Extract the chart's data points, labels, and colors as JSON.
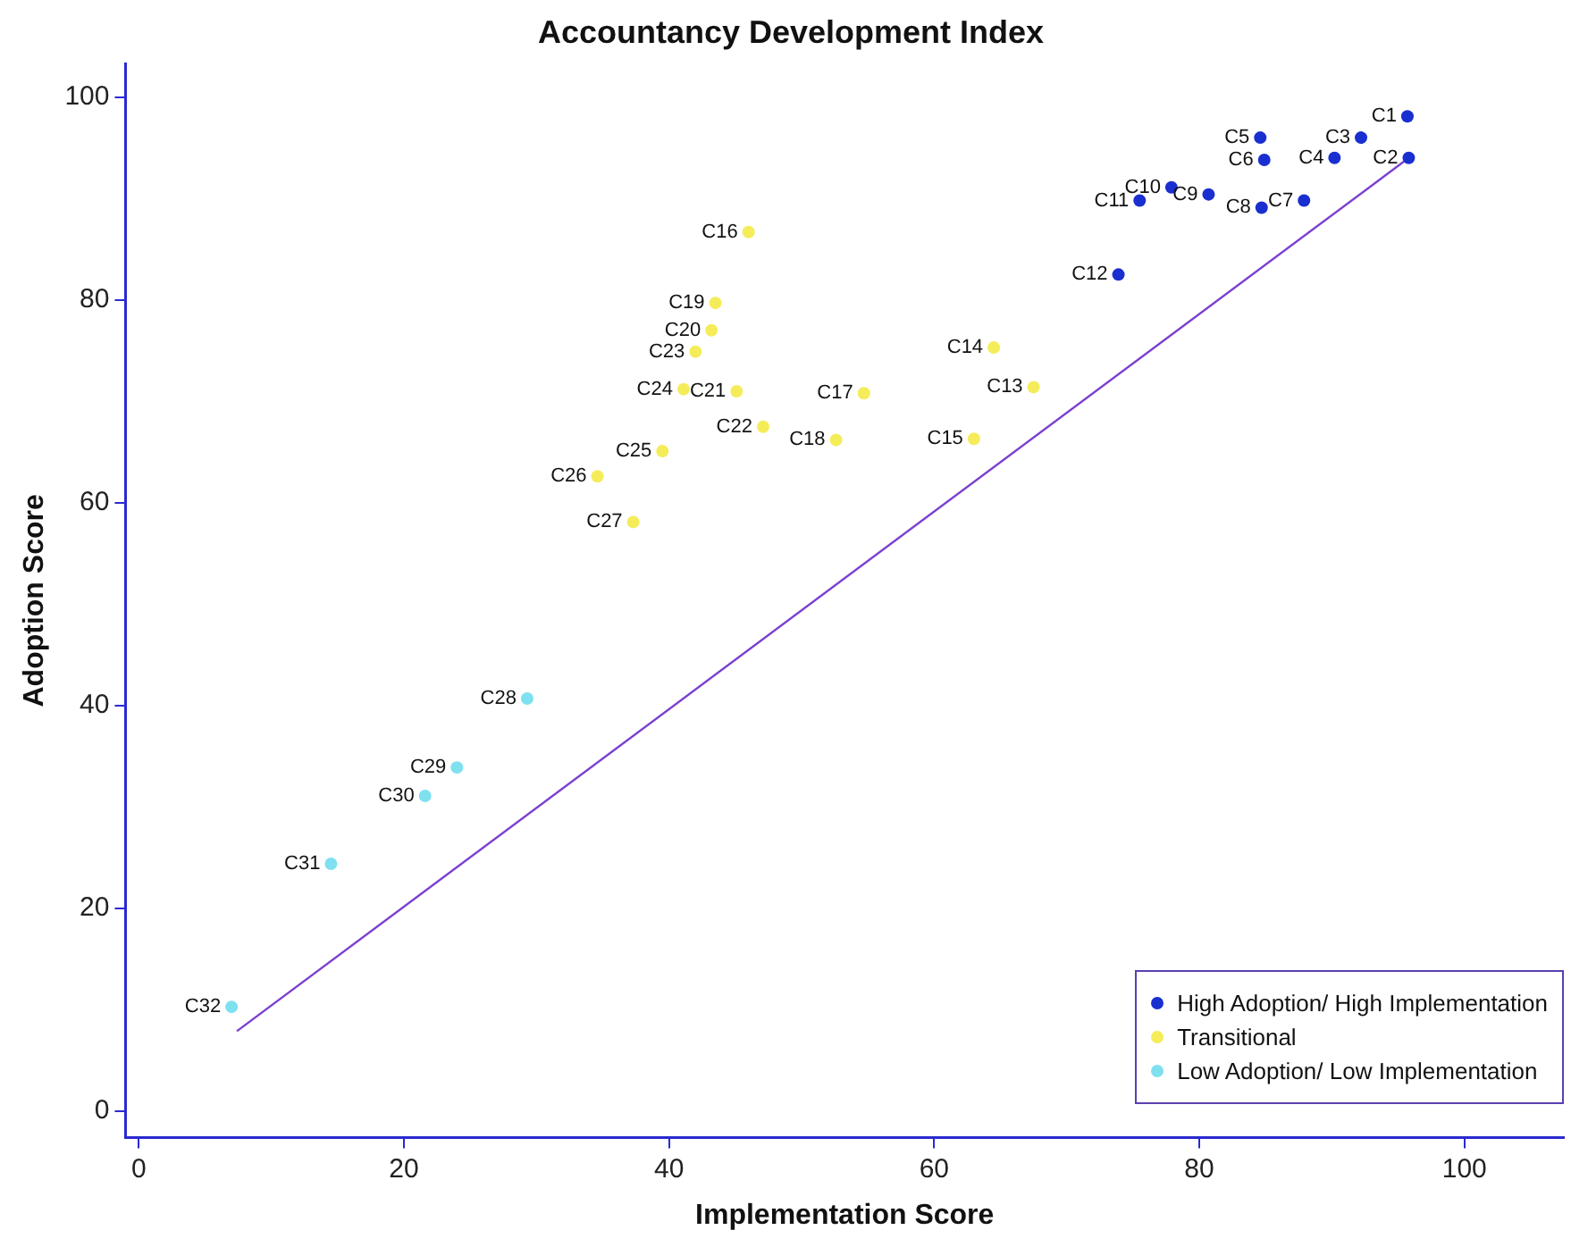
{
  "chart_data": {
    "type": "scatter",
    "title": "Accountancy Development Index",
    "xlabel": "Implementation Score",
    "ylabel": "Adoption Score",
    "xlim": [
      -1,
      107.5
    ],
    "ylim": [
      -2.6,
      103.3
    ],
    "xticks": [
      0,
      20,
      40,
      60,
      80,
      100
    ],
    "yticks": [
      0,
      20,
      40,
      60,
      80,
      100
    ],
    "grid": false,
    "legend": "bottom right",
    "marker": "circle",
    "series": [
      {
        "name": "High Adoption/ High Implementation",
        "color": "#1a2fd0",
        "x": [
          95.7,
          95.8,
          92.2,
          90.2,
          84.6,
          84.9,
          87.9,
          84.7,
          80.7,
          77.9,
          75.5,
          73.9
        ],
        "values": [
          98.1,
          94.0,
          96.0,
          94.0,
          96.0,
          93.8,
          89.8,
          89.1,
          90.4,
          91.1,
          89.8,
          82.5
        ]
      },
      {
        "name": "Transitional",
        "color": "#f5ec5a",
        "x": [
          67.5,
          64.5,
          63.0,
          46.0,
          54.7,
          52.6,
          43.5,
          43.2,
          45.1,
          47.1,
          42.0,
          41.1,
          39.5,
          34.6,
          37.3
        ],
        "values": [
          71.4,
          75.3,
          66.3,
          86.7,
          70.8,
          66.2,
          79.7,
          77.0,
          71.0,
          67.5,
          74.9,
          71.2,
          65.1,
          62.6,
          58.1
        ]
      },
      {
        "name": "Low Adoption/ Low Implementation",
        "color": "#7fe0f0",
        "x": [
          29.3,
          24.0,
          21.6,
          14.5,
          7.0
        ],
        "values": [
          40.7,
          33.9,
          31.1,
          24.4,
          10.3
        ]
      },
      {
        "type": "line",
        "color": "#7b3fd0",
        "x": [
          7.4,
          95.8
        ],
        "values": [
          7.9,
          94.0
        ],
        "marker": "none"
      }
    ],
    "annotations": [
      {
        "text": "C1",
        "x": 95.7,
        "y": 98.1
      },
      {
        "text": "C2",
        "x": 95.8,
        "y": 94.0
      },
      {
        "text": "C3",
        "x": 92.2,
        "y": 96.0
      },
      {
        "text": "C4",
        "x": 90.2,
        "y": 94.0
      },
      {
        "text": "C5",
        "x": 84.6,
        "y": 96.0
      },
      {
        "text": "C6",
        "x": 84.9,
        "y": 93.8
      },
      {
        "text": "C7",
        "x": 87.9,
        "y": 89.8
      },
      {
        "text": "C8",
        "x": 84.7,
        "y": 89.1
      },
      {
        "text": "C9",
        "x": 80.7,
        "y": 90.4
      },
      {
        "text": "C10",
        "x": 77.9,
        "y": 91.1
      },
      {
        "text": "C11",
        "x": 75.5,
        "y": 89.8
      },
      {
        "text": "C12",
        "x": 73.9,
        "y": 82.5
      },
      {
        "text": "C13",
        "x": 67.5,
        "y": 71.4
      },
      {
        "text": "C14",
        "x": 64.5,
        "y": 75.3
      },
      {
        "text": "C15",
        "x": 63.0,
        "y": 66.3
      },
      {
        "text": "C16",
        "x": 46.0,
        "y": 86.7
      },
      {
        "text": "C17",
        "x": 54.7,
        "y": 70.8
      },
      {
        "text": "C18",
        "x": 52.6,
        "y": 66.2
      },
      {
        "text": "C19",
        "x": 43.5,
        "y": 79.7
      },
      {
        "text": "C20",
        "x": 43.2,
        "y": 77.0
      },
      {
        "text": "C21",
        "x": 45.1,
        "y": 71.0
      },
      {
        "text": "C22",
        "x": 47.1,
        "y": 67.5
      },
      {
        "text": "C23",
        "x": 42.0,
        "y": 74.9
      },
      {
        "text": "C24",
        "x": 41.1,
        "y": 71.2
      },
      {
        "text": "C25",
        "x": 39.5,
        "y": 65.1
      },
      {
        "text": "C26",
        "x": 34.6,
        "y": 62.6
      },
      {
        "text": "C27",
        "x": 37.3,
        "y": 58.1
      },
      {
        "text": "C28",
        "x": 29.3,
        "y": 40.7
      },
      {
        "text": "C29",
        "x": 24.0,
        "y": 33.9
      },
      {
        "text": "C30",
        "x": 21.6,
        "y": 31.1
      },
      {
        "text": "C31",
        "x": 14.5,
        "y": 24.4
      },
      {
        "text": "C32",
        "x": 7.0,
        "y": 10.3
      }
    ]
  }
}
